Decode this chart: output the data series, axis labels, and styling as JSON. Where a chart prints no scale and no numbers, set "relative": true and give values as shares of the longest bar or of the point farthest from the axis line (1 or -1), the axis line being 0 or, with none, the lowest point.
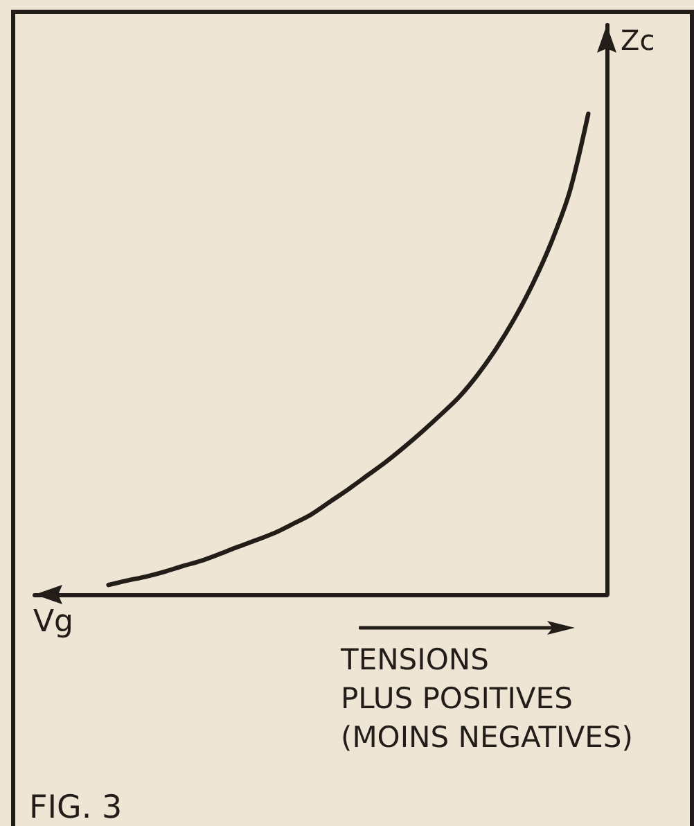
{
  "chart_data": {
    "type": "line",
    "relative": true,
    "xlabel": "Vg",
    "ylabel": "Zc",
    "categories": [
      null,
      null,
      null,
      null,
      null,
      null,
      null,
      null,
      null,
      null,
      null,
      null,
      null,
      null,
      null,
      null,
      null,
      null,
      null,
      null,
      null,
      null,
      null,
      null,
      null,
      null,
      null,
      null,
      null,
      null,
      null,
      null
    ],
    "color": "#231d19",
    "values": [
      null,
      null,
      null,
      null,
      0.02,
      0.029,
      0.037,
      0.047,
      0.059,
      0.07,
      0.084,
      0.099,
      0.113,
      0.128,
      0.147,
      0.167,
      0.193,
      0.219,
      0.247,
      0.275,
      0.306,
      0.339,
      0.374,
      0.411,
      0.457,
      0.511,
      0.574,
      0.647,
      0.733,
      0.839,
      1,
      null
    ],
    "annotations": [
      "TENSIONS\nPLUS POSITIVES\n(MOINS NEGATIVES)",
      "FIG. 3"
    ]
  }
}
